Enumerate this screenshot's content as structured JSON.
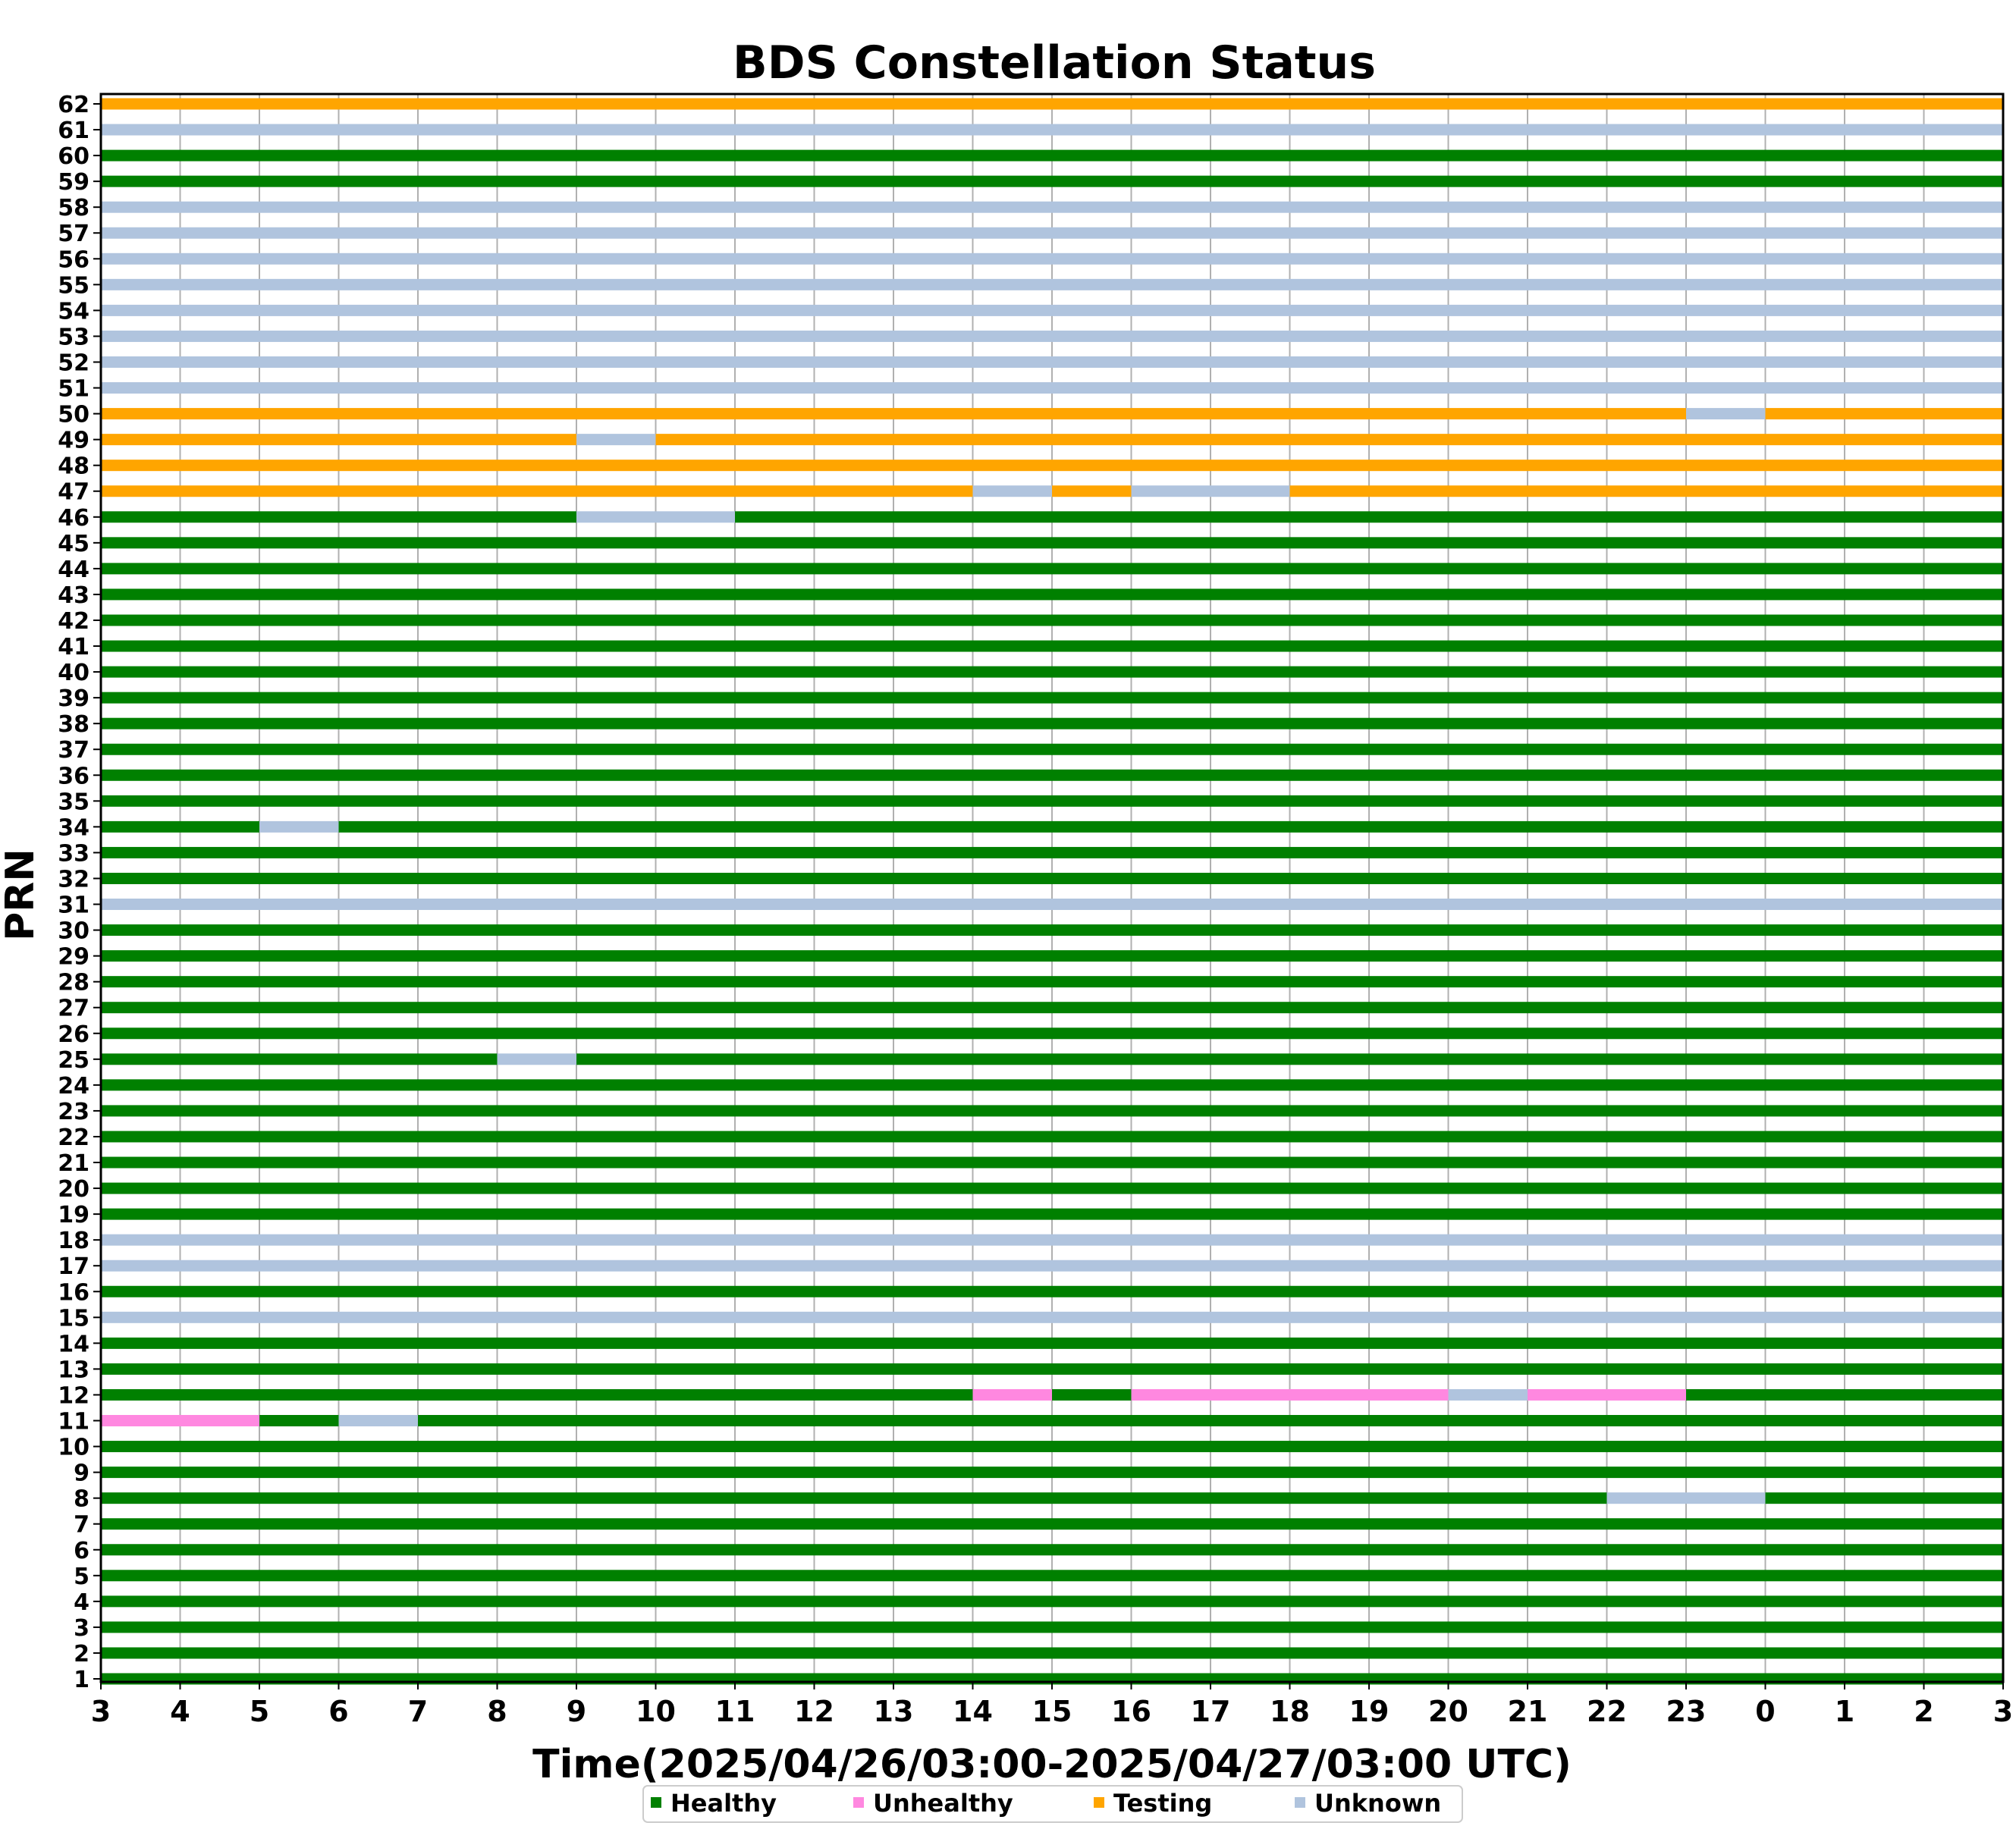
{
  "chart_data": {
    "type": "timeline",
    "title": "BDS Constellation Status",
    "xlabel": "Time(2025/04/26/03:00-2025/04/27/03:00 UTC)",
    "ylabel": "PRN",
    "x_tick_labels": [
      "3",
      "4",
      "5",
      "6",
      "7",
      "8",
      "9",
      "10",
      "11",
      "12",
      "13",
      "14",
      "15",
      "16",
      "17",
      "18",
      "19",
      "20",
      "21",
      "22",
      "23",
      "0",
      "1",
      "2",
      "3"
    ],
    "x_range_hours": [
      0,
      24
    ],
    "prns": [
      1,
      2,
      3,
      4,
      5,
      6,
      7,
      8,
      9,
      10,
      11,
      12,
      13,
      14,
      15,
      16,
      17,
      18,
      19,
      20,
      21,
      22,
      23,
      24,
      25,
      26,
      27,
      28,
      29,
      30,
      31,
      32,
      33,
      34,
      35,
      36,
      37,
      38,
      39,
      40,
      41,
      42,
      43,
      44,
      45,
      46,
      47,
      48,
      49,
      50,
      51,
      52,
      53,
      54,
      55,
      56,
      57,
      58,
      59,
      60,
      61,
      62
    ],
    "grid": "vertical",
    "legend_position": "bottom-center",
    "legend": [
      {
        "label": "Healthy",
        "color": "#008000"
      },
      {
        "label": "Unhealthy",
        "color": "#ff88e0"
      },
      {
        "label": "Testing",
        "color": "#ffa500"
      },
      {
        "label": "Unknown",
        "color": "#b0c4de"
      }
    ],
    "status_colors": {
      "Healthy": "#008000",
      "Unhealthy": "#ff88e0",
      "Testing": "#ffa500",
      "Unknown": "#b0c4de"
    },
    "default_status": "Healthy",
    "rows": {
      "8": [
        {
          "start": 0,
          "end": 19,
          "status": "Healthy"
        },
        {
          "start": 19,
          "end": 21,
          "status": "Unknown"
        },
        {
          "start": 21,
          "end": 24,
          "status": "Healthy"
        }
      ],
      "11": [
        {
          "start": 0,
          "end": 2,
          "status": "Unhealthy"
        },
        {
          "start": 2,
          "end": 3,
          "status": "Healthy"
        },
        {
          "start": 3,
          "end": 4,
          "status": "Unknown"
        },
        {
          "start": 4,
          "end": 24,
          "status": "Healthy"
        }
      ],
      "12": [
        {
          "start": 0,
          "end": 11,
          "status": "Healthy"
        },
        {
          "start": 11,
          "end": 12,
          "status": "Unhealthy"
        },
        {
          "start": 12,
          "end": 13,
          "status": "Healthy"
        },
        {
          "start": 13,
          "end": 17,
          "status": "Unhealthy"
        },
        {
          "start": 17,
          "end": 18,
          "status": "Unknown"
        },
        {
          "start": 18,
          "end": 20,
          "status": "Unhealthy"
        },
        {
          "start": 20,
          "end": 24,
          "status": "Healthy"
        }
      ],
      "15": [
        {
          "start": 0,
          "end": 24,
          "status": "Unknown"
        }
      ],
      "17": [
        {
          "start": 0,
          "end": 24,
          "status": "Unknown"
        }
      ],
      "18": [
        {
          "start": 0,
          "end": 24,
          "status": "Unknown"
        }
      ],
      "25": [
        {
          "start": 0,
          "end": 5,
          "status": "Healthy"
        },
        {
          "start": 5,
          "end": 6,
          "status": "Unknown"
        },
        {
          "start": 6,
          "end": 24,
          "status": "Healthy"
        }
      ],
      "31": [
        {
          "start": 0,
          "end": 24,
          "status": "Unknown"
        }
      ],
      "34": [
        {
          "start": 0,
          "end": 2,
          "status": "Healthy"
        },
        {
          "start": 2,
          "end": 3,
          "status": "Unknown"
        },
        {
          "start": 3,
          "end": 24,
          "status": "Healthy"
        }
      ],
      "46": [
        {
          "start": 0,
          "end": 6,
          "status": "Healthy"
        },
        {
          "start": 6,
          "end": 8,
          "status": "Unknown"
        },
        {
          "start": 8,
          "end": 24,
          "status": "Healthy"
        }
      ],
      "47": [
        {
          "start": 0,
          "end": 11,
          "status": "Testing"
        },
        {
          "start": 11,
          "end": 12,
          "status": "Unknown"
        },
        {
          "start": 12,
          "end": 13,
          "status": "Testing"
        },
        {
          "start": 13,
          "end": 15,
          "status": "Unknown"
        },
        {
          "start": 15,
          "end": 24,
          "status": "Testing"
        }
      ],
      "48": [
        {
          "start": 0,
          "end": 24,
          "status": "Testing"
        }
      ],
      "49": [
        {
          "start": 0,
          "end": 6,
          "status": "Testing"
        },
        {
          "start": 6,
          "end": 7,
          "status": "Unknown"
        },
        {
          "start": 7,
          "end": 24,
          "status": "Testing"
        }
      ],
      "50": [
        {
          "start": 0,
          "end": 20,
          "status": "Testing"
        },
        {
          "start": 20,
          "end": 21,
          "status": "Unknown"
        },
        {
          "start": 21,
          "end": 24,
          "status": "Testing"
        }
      ],
      "51": [
        {
          "start": 0,
          "end": 24,
          "status": "Unknown"
        }
      ],
      "52": [
        {
          "start": 0,
          "end": 24,
          "status": "Unknown"
        }
      ],
      "53": [
        {
          "start": 0,
          "end": 24,
          "status": "Unknown"
        }
      ],
      "54": [
        {
          "start": 0,
          "end": 24,
          "status": "Unknown"
        }
      ],
      "55": [
        {
          "start": 0,
          "end": 24,
          "status": "Unknown"
        }
      ],
      "56": [
        {
          "start": 0,
          "end": 24,
          "status": "Unknown"
        }
      ],
      "57": [
        {
          "start": 0,
          "end": 24,
          "status": "Unknown"
        }
      ],
      "58": [
        {
          "start": 0,
          "end": 24,
          "status": "Unknown"
        }
      ],
      "61": [
        {
          "start": 0,
          "end": 24,
          "status": "Unknown"
        }
      ],
      "62": [
        {
          "start": 0,
          "end": 24,
          "status": "Testing"
        }
      ]
    }
  }
}
